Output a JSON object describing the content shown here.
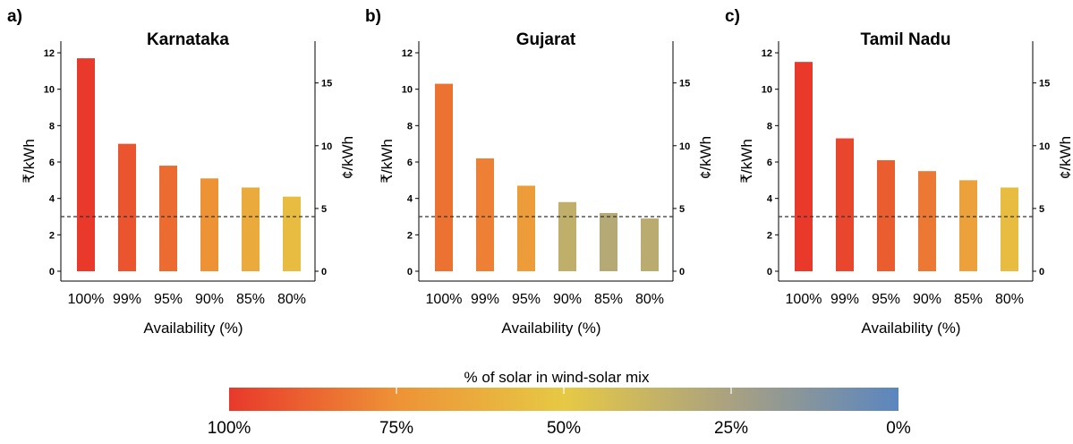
{
  "chart_data": [
    {
      "panel": "a)",
      "title": "Karnataka",
      "type": "bar",
      "categories": [
        "100%",
        "99%",
        "95%",
        "90%",
        "85%",
        "80%"
      ],
      "values": [
        11.7,
        7.0,
        5.8,
        5.1,
        4.6,
        4.1
      ],
      "solar_share": [
        100,
        92,
        86,
        75,
        64,
        56
      ],
      "xlabel": "Availability (%)",
      "ylabel": "₹/kWh",
      "ylabel_right": "¢/kWh",
      "ylim": [
        0,
        12
      ],
      "yticks": [
        "0",
        "2",
        "4",
        "6",
        "8",
        "10",
        "12"
      ],
      "yticks_right": [
        "0",
        "5",
        "10",
        "15"
      ],
      "reference_line": 3.0
    },
    {
      "panel": "b)",
      "title": "Gujarat",
      "type": "bar",
      "categories": [
        "100%",
        "99%",
        "95%",
        "90%",
        "85%",
        "80%"
      ],
      "values": [
        10.3,
        6.2,
        4.7,
        3.8,
        3.2,
        2.9
      ],
      "solar_share": [
        84,
        80,
        70,
        34,
        30,
        32
      ],
      "xlabel": "Availability (%)",
      "ylabel": "₹/kWh",
      "ylabel_right": "¢/kWh",
      "ylim": [
        0,
        12
      ],
      "yticks": [
        "0",
        "2",
        "4",
        "6",
        "8",
        "10",
        "12"
      ],
      "yticks_right": [
        "0",
        "5",
        "10",
        "15"
      ],
      "reference_line": 3.0
    },
    {
      "panel": "c)",
      "title": "Tamil Nadu",
      "type": "bar",
      "categories": [
        "100%",
        "99%",
        "95%",
        "90%",
        "85%",
        "80%"
      ],
      "values": [
        11.5,
        7.3,
        6.1,
        5.5,
        5.0,
        4.6
      ],
      "solar_share": [
        100,
        96,
        90,
        82,
        68,
        56
      ],
      "xlabel": "Availability (%)",
      "ylabel": "₹/kWh",
      "ylabel_right": "¢/kWh",
      "ylim": [
        0,
        12
      ],
      "yticks": [
        "0",
        "2",
        "4",
        "6",
        "8",
        "10",
        "12"
      ],
      "yticks_right": [
        "0",
        "5",
        "10",
        "15"
      ],
      "reference_line": 3.0
    }
  ],
  "legend": {
    "title": "% of solar in wind-solar mix",
    "ticks": [
      "100%",
      "75%",
      "50%",
      "25%",
      "0%"
    ],
    "stops": [
      {
        "share": 100,
        "color": "#E8392B"
      },
      {
        "share": 75,
        "color": "#EE9236"
      },
      {
        "share": 50,
        "color": "#E6C944"
      },
      {
        "share": 25,
        "color": "#A9A181"
      },
      {
        "share": 0,
        "color": "#5B86BF"
      }
    ]
  }
}
